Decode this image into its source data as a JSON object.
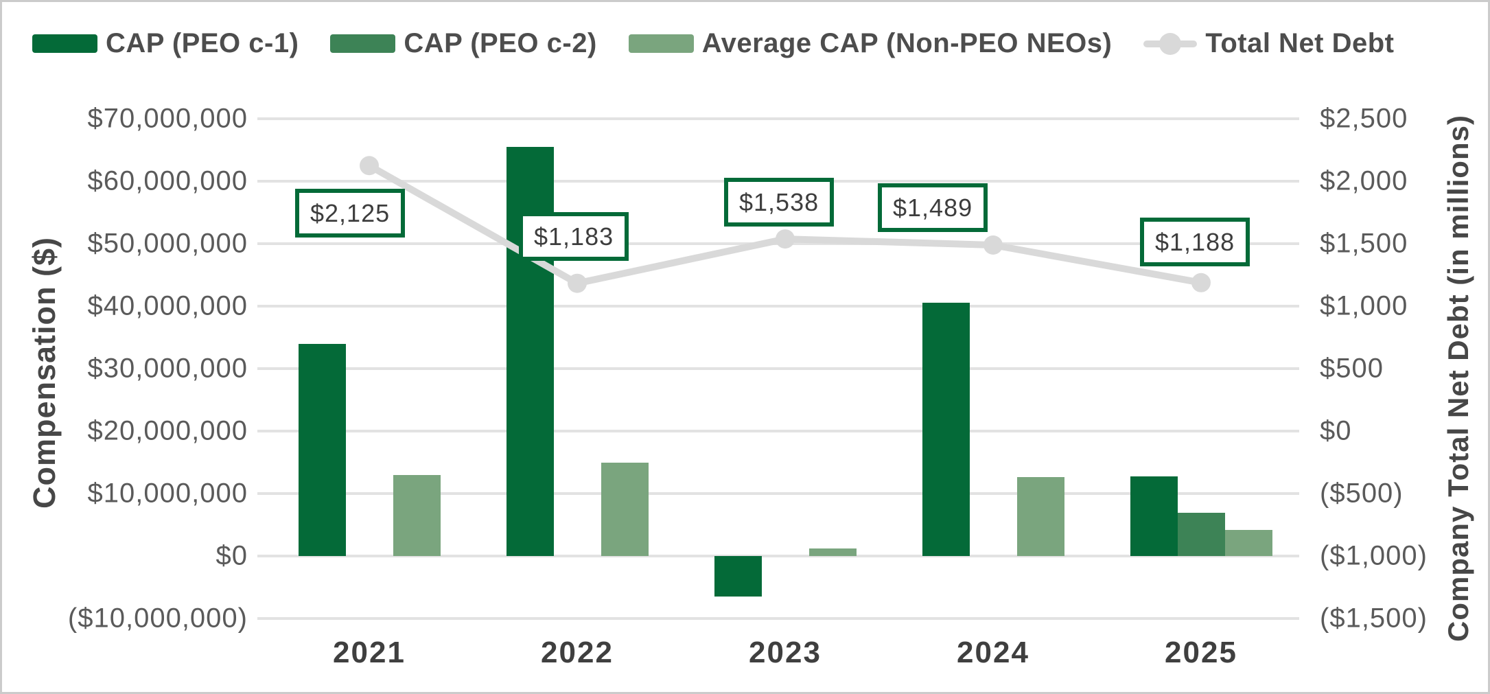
{
  "legend": {
    "items": [
      {
        "label": "CAP (PEO c-1)",
        "color": "#046a38",
        "marker": "bar-swatch"
      },
      {
        "label": "CAP (PEO c-2)",
        "color": "#3d8356",
        "marker": "bar-swatch"
      },
      {
        "label": "Average CAP (Non-PEO NEOs)",
        "color": "#7aa57e",
        "marker": "bar-swatch"
      },
      {
        "label": "Total Net Debt",
        "color": "#d9d9d9",
        "marker": "line-marker"
      }
    ]
  },
  "left_axis": {
    "title": "Compensation ($)",
    "ticks": [
      "$70,000,000",
      "$60,000,000",
      "$50,000,000",
      "$40,000,000",
      "$30,000,000",
      "$20,000,000",
      "$10,000,000",
      "$0",
      "($10,000,000)"
    ]
  },
  "right_axis": {
    "title": "Company Total Net Debt (in millions)",
    "ticks": [
      "$2,500",
      "$2,000",
      "$1,500",
      "$1,000",
      "$500",
      "$0",
      "($500)",
      "($1,000)",
      "($1,500)"
    ]
  },
  "x_axis": {
    "categories": [
      "2021",
      "2022",
      "2023",
      "2024",
      "2025"
    ]
  },
  "chart_data": {
    "type": "combo",
    "categories": [
      "2021",
      "2022",
      "2023",
      "2024",
      "2025"
    ],
    "series": [
      {
        "name": "CAP (PEO c-1)",
        "type": "bar",
        "axis": "left",
        "color": "#046a38",
        "values": [
          34000000,
          65500000,
          -6500000,
          40500000,
          12700000
        ]
      },
      {
        "name": "CAP (PEO c-2)",
        "type": "bar",
        "axis": "left",
        "color": "#3d8356",
        "values": [
          null,
          null,
          null,
          null,
          6900000
        ]
      },
      {
        "name": "Average CAP (Non-PEO NEOs)",
        "type": "bar",
        "axis": "left",
        "color": "#7aa57e",
        "values": [
          13000000,
          15000000,
          1200000,
          12600000,
          4200000
        ]
      },
      {
        "name": "Total Net Debt",
        "type": "line",
        "axis": "right",
        "color": "#d9d9d9",
        "values": [
          2125,
          1183,
          1538,
          1489,
          1188
        ],
        "labels": [
          "$2,125",
          "$1,183",
          "$1,538",
          "$1,489",
          "$1,188"
        ]
      }
    ],
    "left_axis": {
      "label": "Compensation ($)",
      "min": -10000000,
      "max": 70000000,
      "step": 10000000
    },
    "right_axis": {
      "label": "Company Total Net Debt (in millions)",
      "min": -1500,
      "max": 2500,
      "step": 500
    },
    "grid": true,
    "legend_position": "top"
  }
}
